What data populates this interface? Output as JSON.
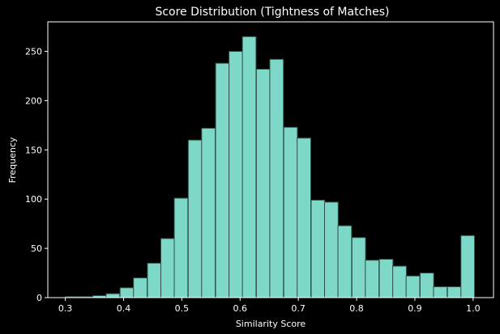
{
  "chart_data": {
    "type": "bar",
    "subtype": "histogram",
    "title": "Score Distribution (Tightness of Matches)",
    "xlabel": "Similarity Score",
    "ylabel": "Frequency",
    "xlim": [
      0.27,
      1.035
    ],
    "ylim": [
      0,
      280
    ],
    "xticks": [
      "0.3",
      "0.4",
      "0.5",
      "0.6",
      "0.7",
      "0.8",
      "0.9",
      "1.0"
    ],
    "yticks": [
      "0",
      "50",
      "100",
      "150",
      "200",
      "250"
    ],
    "bin_width": 0.0234,
    "bins": [
      {
        "x0": 0.3,
        "value": 1
      },
      {
        "x0": 0.323,
        "value": 1
      },
      {
        "x0": 0.347,
        "value": 2
      },
      {
        "x0": 0.37,
        "value": 4
      },
      {
        "x0": 0.394,
        "value": 10
      },
      {
        "x0": 0.417,
        "value": 20
      },
      {
        "x0": 0.441,
        "value": 35
      },
      {
        "x0": 0.464,
        "value": 60
      },
      {
        "x0": 0.487,
        "value": 101
      },
      {
        "x0": 0.511,
        "value": 160
      },
      {
        "x0": 0.534,
        "value": 172
      },
      {
        "x0": 0.558,
        "value": 238
      },
      {
        "x0": 0.581,
        "value": 250
      },
      {
        "x0": 0.604,
        "value": 265
      },
      {
        "x0": 0.628,
        "value": 232
      },
      {
        "x0": 0.651,
        "value": 242
      },
      {
        "x0": 0.675,
        "value": 173
      },
      {
        "x0": 0.698,
        "value": 162
      },
      {
        "x0": 0.722,
        "value": 99
      },
      {
        "x0": 0.745,
        "value": 97
      },
      {
        "x0": 0.768,
        "value": 73
      },
      {
        "x0": 0.792,
        "value": 61
      },
      {
        "x0": 0.815,
        "value": 38
      },
      {
        "x0": 0.839,
        "value": 39
      },
      {
        "x0": 0.862,
        "value": 32
      },
      {
        "x0": 0.885,
        "value": 22
      },
      {
        "x0": 0.909,
        "value": 25
      },
      {
        "x0": 0.932,
        "value": 11
      },
      {
        "x0": 0.956,
        "value": 11
      },
      {
        "x0": 0.979,
        "value": 63
      }
    ],
    "grid": false,
    "colors": {
      "bar_fill": "#7dd8c8",
      "bar_edge": "#2e4b47",
      "background": "#000000",
      "axis": "#ffffff",
      "text": "#ffffff"
    }
  }
}
